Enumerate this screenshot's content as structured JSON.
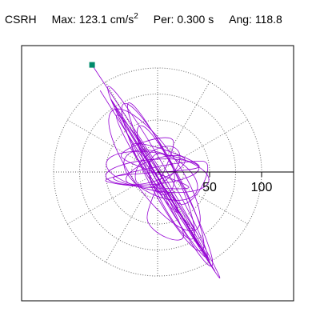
{
  "header": {
    "station": "CSRH",
    "max_label": "Max:",
    "max_value": "123.1 cm/s",
    "max_exponent": "2",
    "per_label": "Per:",
    "per_value": "0.300 s",
    "ang_label": "Ang:",
    "ang_value": "118.8"
  },
  "chart_data": {
    "type": "scatter",
    "title": "",
    "subtitle": "",
    "radial_tick_labels": [
      "50",
      "100"
    ],
    "radial_ticks": [
      50,
      100
    ],
    "radial_grid_rings": [
      25,
      50,
      75,
      100
    ],
    "angular_grid_step_deg": 30,
    "grid": true,
    "max_radius": 100,
    "trace_color": "#9400d3",
    "marker_color": "#008b6b",
    "peak_point": {
      "x": -63,
      "y": 103
    },
    "trace_anchor_points": [
      {
        "x": -63,
        "y": 103
      },
      {
        "x": 10,
        "y": -10
      },
      {
        "x": 58,
        "y": -100
      },
      {
        "x": -55,
        "y": 78
      },
      {
        "x": 40,
        "y": -72
      },
      {
        "x": -30,
        "y": 45
      },
      {
        "x": 55,
        "y": -95
      },
      {
        "x": -40,
        "y": 60
      },
      {
        "x": 20,
        "y": -30
      },
      {
        "x": 45,
        "y": 10
      },
      {
        "x": -50,
        "y": -8
      },
      {
        "x": 30,
        "y": -15
      },
      {
        "x": -35,
        "y": 15
      },
      {
        "x": 15,
        "y": 30
      },
      {
        "x": -10,
        "y": -45
      },
      {
        "x": 25,
        "y": -60
      },
      {
        "x": -20,
        "y": 35
      },
      {
        "x": 50,
        "y": -85
      },
      {
        "x": -45,
        "y": 70
      },
      {
        "x": 35,
        "y": -55
      },
      {
        "x": -25,
        "y": 25
      },
      {
        "x": 40,
        "y": 5
      },
      {
        "x": -42,
        "y": -5
      },
      {
        "x": 5,
        "y": -20
      }
    ]
  }
}
